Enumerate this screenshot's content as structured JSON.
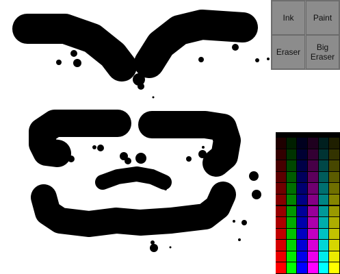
{
  "tools": {
    "ink": "Ink",
    "paint": "Paint",
    "eraser": "Eraser",
    "big_eraser": "Big Eraser"
  },
  "palette": {
    "hues": [
      "#ff0000",
      "#00ff00",
      "#0000ff",
      "#ff00ff",
      "#00ffff",
      "#ffff00"
    ],
    "levels": 12
  },
  "canvas": {
    "background": "#ffffff",
    "ink_color": "#000000"
  }
}
